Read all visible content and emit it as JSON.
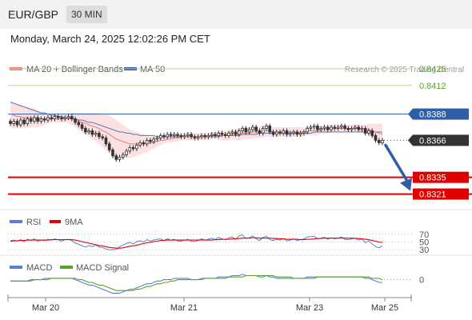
{
  "header": {
    "pair": "EUR/GBP",
    "timeframe": "30 MIN"
  },
  "timestamp": "Monday, March 24, 2025 12:02:26 PM CET",
  "legend": {
    "ma20": "MA 20 + Bollinger Bands",
    "ma50": "MA 50",
    "credit": "Research © 2025 Trading Central",
    "rsi": "RSI",
    "rsi_ma": "9MA",
    "macd": "MACD",
    "macd_signal": "MACD Signal"
  },
  "colors": {
    "ma20": "#f08080",
    "ma50": "#3a5aa8",
    "green_level": "#5aa02c",
    "blue_level": "#2e5ea8",
    "red_level": "#e00000",
    "current": "#333333",
    "arrow": "#2e5ea8",
    "rsi": "#5b7fd6",
    "rsi_ma": "#e00000",
    "macd": "#5b7fd6",
    "macd_signal": "#5aa02c"
  },
  "chart_data": [
    {
      "type": "candlestick",
      "title": "EUR/GBP 30 MIN",
      "ylim": [
        0.8312,
        0.8442
      ],
      "x_ticks": [
        "Mar 20",
        "Mar 21",
        "Mar 23",
        "Mar 25"
      ],
      "levels": [
        {
          "value": 0.8426,
          "label": "0.8426",
          "style": "green"
        },
        {
          "value": 0.8412,
          "label": "0.8412",
          "style": "green"
        },
        {
          "value": 0.8388,
          "label": "0.8388",
          "style": "blue"
        },
        {
          "value": 0.8366,
          "label": "0.8366",
          "style": "current"
        },
        {
          "value": 0.8335,
          "label": "0.8335",
          "style": "red"
        },
        {
          "value": 0.8321,
          "label": "0.8321",
          "style": "red"
        }
      ],
      "close": [
        0.838,
        0.8382,
        0.8379,
        0.8383,
        0.838,
        0.8384,
        0.8382,
        0.8385,
        0.8382,
        0.8384,
        0.8383,
        0.8385,
        0.8384,
        0.8386,
        0.8385,
        0.8384,
        0.8385,
        0.8386,
        0.8384,
        0.8381,
        0.8379,
        0.8376,
        0.8373,
        0.8374,
        0.8371,
        0.8372,
        0.8369,
        0.8368,
        0.8363,
        0.8358,
        0.8353,
        0.835,
        0.8352,
        0.8354,
        0.8357,
        0.836,
        0.8359,
        0.8362,
        0.8364,
        0.8363,
        0.8366,
        0.8365,
        0.8367,
        0.8368,
        0.837,
        0.8369,
        0.8371,
        0.837,
        0.8371,
        0.837,
        0.8369,
        0.837,
        0.8371,
        0.8369,
        0.8368,
        0.8369,
        0.837,
        0.8369,
        0.837,
        0.8371,
        0.837,
        0.8372,
        0.8371,
        0.837,
        0.8372,
        0.8373,
        0.8371,
        0.8374,
        0.8376,
        0.8373,
        0.8375,
        0.8377,
        0.8374,
        0.8372,
        0.8376,
        0.8378,
        0.8373,
        0.8371,
        0.8373,
        0.8372,
        0.8374,
        0.8371,
        0.8372,
        0.8373,
        0.8371,
        0.8372,
        0.8373,
        0.8376,
        0.8377,
        0.8378,
        0.8375,
        0.8376,
        0.8377,
        0.8375,
        0.8377,
        0.8376,
        0.8377,
        0.8378,
        0.8376,
        0.8375,
        0.8376,
        0.8377,
        0.8375,
        0.8376,
        0.8372,
        0.8374,
        0.837,
        0.8366,
        0.8364,
        0.8366
      ],
      "ma20": [
        0.8388,
        0.8387,
        0.8386,
        0.8386,
        0.8385,
        0.8385,
        0.8385,
        0.8385,
        0.8384,
        0.8384,
        0.8384,
        0.8384,
        0.8384,
        0.8384,
        0.8384,
        0.8384,
        0.8384,
        0.8384,
        0.8384,
        0.8383,
        0.8382,
        0.8381,
        0.838,
        0.8379,
        0.8378,
        0.8377,
        0.8376,
        0.8374,
        0.8373,
        0.8371,
        0.8369,
        0.8367,
        0.8366,
        0.8365,
        0.8364,
        0.8363,
        0.8363,
        0.8363,
        0.8363,
        0.8363,
        0.8363,
        0.8364,
        0.8364,
        0.8365,
        0.8366,
        0.8366,
        0.8367,
        0.8367,
        0.8368,
        0.8368,
        0.8369,
        0.8369,
        0.8369,
        0.8369,
        0.8369,
        0.8369,
        0.8369,
        0.8369,
        0.8369,
        0.837,
        0.837,
        0.837,
        0.837,
        0.837,
        0.837,
        0.8371,
        0.8371,
        0.8371,
        0.8372,
        0.8372,
        0.8372,
        0.8373,
        0.8373,
        0.8373,
        0.8373,
        0.8374,
        0.8374,
        0.8373,
        0.8373,
        0.8373,
        0.8373,
        0.8373,
        0.8373,
        0.8373,
        0.8373,
        0.8373,
        0.8373,
        0.8374,
        0.8374,
        0.8374,
        0.8374,
        0.8375,
        0.8375,
        0.8375,
        0.8376,
        0.8376,
        0.8376,
        0.8376,
        0.8376,
        0.8376,
        0.8376,
        0.8376,
        0.8376,
        0.8376,
        0.8375,
        0.8375,
        0.8374,
        0.8373,
        0.8372,
        0.8371
      ],
      "ma50": [
        0.8398,
        0.8397,
        0.8396,
        0.8395,
        0.8394,
        0.8393,
        0.8392,
        0.8391,
        0.839,
        0.8389,
        0.8389,
        0.8388,
        0.8387,
        0.8387,
        0.8386,
        0.8386,
        0.8385,
        0.8385,
        0.8384,
        0.8384,
        0.8383,
        0.8383,
        0.8382,
        0.8381,
        0.8381,
        0.838,
        0.8379,
        0.8378,
        0.8377,
        0.8376,
        0.8375,
        0.8374,
        0.8373,
        0.8373,
        0.8372,
        0.8372,
        0.8371,
        0.8371,
        0.837,
        0.837,
        0.837,
        0.837,
        0.837,
        0.8369,
        0.8369,
        0.8369,
        0.8369,
        0.8369,
        0.8369,
        0.8369,
        0.8369,
        0.8369,
        0.8369,
        0.8369,
        0.8369,
        0.8369,
        0.8369,
        0.8369,
        0.8369,
        0.8369,
        0.8369,
        0.8369,
        0.837,
        0.837,
        0.837,
        0.837,
        0.837,
        0.837,
        0.8371,
        0.8371,
        0.8371,
        0.8371,
        0.8371,
        0.8372,
        0.8372,
        0.8372,
        0.8372,
        0.8372,
        0.8372,
        0.8372,
        0.8372,
        0.8372,
        0.8372,
        0.8372,
        0.8372,
        0.8372,
        0.8372,
        0.8372,
        0.8372,
        0.8373,
        0.8373,
        0.8373,
        0.8373,
        0.8373,
        0.8373,
        0.8373,
        0.8373,
        0.8373,
        0.8373,
        0.8373,
        0.8373,
        0.8373,
        0.8373,
        0.8373,
        0.8373,
        0.8373,
        0.8373,
        0.8373,
        0.8373,
        0.8373
      ],
      "bb_width": [
        0.0011,
        0.0011,
        0.001,
        0.001,
        0.0009,
        0.0009,
        0.0008,
        0.0008,
        0.0007,
        0.0006,
        0.0005,
        0.0004,
        0.0003,
        0.0003,
        0.0003,
        0.0003,
        0.0003,
        0.0004,
        0.0005,
        0.0006,
        0.0007,
        0.0008,
        0.0009,
        0.001,
        0.0011,
        0.0012,
        0.0013,
        0.0014,
        0.0015,
        0.0016,
        0.0016,
        0.0016,
        0.0015,
        0.0014,
        0.0013,
        0.0012,
        0.0011,
        0.001,
        0.0009,
        0.0008,
        0.0007,
        0.0006,
        0.0005,
        0.0004,
        0.0004,
        0.0003,
        0.0003,
        0.0003,
        0.0003,
        0.0003,
        0.0003,
        0.0003,
        0.0003,
        0.0003,
        0.0003,
        0.0003,
        0.0003,
        0.0003,
        0.0003,
        0.0003,
        0.0003,
        0.0004,
        0.0004,
        0.0004,
        0.0004,
        0.0004,
        0.0005,
        0.0005,
        0.0005,
        0.0005,
        0.0005,
        0.0005,
        0.0005,
        0.0005,
        0.0005,
        0.0005,
        0.0005,
        0.0004,
        0.0004,
        0.0004,
        0.0004,
        0.0004,
        0.0004,
        0.0004,
        0.0004,
        0.0004,
        0.0004,
        0.0004,
        0.0004,
        0.0004,
        0.0004,
        0.0003,
        0.0003,
        0.0003,
        0.0003,
        0.0003,
        0.0003,
        0.0003,
        0.0003,
        0.0003,
        0.0003,
        0.0003,
        0.0003,
        0.0003,
        0.0004,
        0.0005,
        0.0006,
        0.0007,
        0.0008,
        0.0009
      ],
      "projection": {
        "from": 0.8366,
        "to": 0.8329
      }
    },
    {
      "type": "line",
      "title": "RSI",
      "ylim": [
        20,
        80
      ],
      "y_ticks": [
        30,
        50,
        70
      ],
      "series": [
        {
          "name": "RSI",
          "values": [
            53,
            55,
            52,
            56,
            51,
            57,
            54,
            58,
            52,
            55,
            54,
            57,
            55,
            58,
            56,
            52,
            56,
            57,
            54,
            47,
            44,
            40,
            37,
            41,
            38,
            42,
            37,
            36,
            32,
            30,
            30,
            31,
            38,
            42,
            46,
            49,
            45,
            51,
            53,
            50,
            56,
            52,
            55,
            57,
            58,
            54,
            58,
            55,
            57,
            53,
            52,
            55,
            57,
            52,
            51,
            54,
            58,
            55,
            57,
            60,
            56,
            62,
            58,
            56,
            61,
            63,
            57,
            66,
            68,
            59,
            61,
            66,
            58,
            54,
            62,
            65,
            56,
            54,
            57,
            55,
            59,
            53,
            55,
            58,
            54,
            56,
            58,
            63,
            64,
            65,
            58,
            60,
            62,
            57,
            61,
            58,
            60,
            63,
            57,
            56,
            58,
            60,
            55,
            58,
            48,
            53,
            45,
            38,
            35,
            40
          ]
        },
        {
          "name": "9MA",
          "values": [
            52,
            53,
            53,
            54,
            54,
            55,
            55,
            55,
            55,
            55,
            55,
            55,
            56,
            56,
            56,
            56,
            56,
            56,
            56,
            55,
            53,
            51,
            49,
            47,
            45,
            43,
            41,
            40,
            38,
            36,
            35,
            34,
            34,
            35,
            37,
            39,
            40,
            42,
            44,
            46,
            48,
            49,
            51,
            52,
            54,
            54,
            55,
            55,
            55,
            55,
            55,
            55,
            55,
            55,
            55,
            55,
            55,
            55,
            55,
            55,
            56,
            56,
            57,
            57,
            57,
            58,
            58,
            59,
            60,
            60,
            60,
            61,
            61,
            60,
            60,
            60,
            60,
            59,
            59,
            58,
            58,
            57,
            57,
            57,
            57,
            56,
            56,
            57,
            57,
            58,
            59,
            59,
            60,
            60,
            60,
            60,
            60,
            60,
            60,
            60,
            60,
            59,
            59,
            58,
            57,
            56,
            54,
            52,
            50,
            49
          ]
        }
      ]
    },
    {
      "type": "line",
      "title": "MACD",
      "ylim": [
        -0.0012,
        0.0008
      ],
      "y_ticks": [
        0
      ],
      "series": [
        {
          "name": "MACD",
          "values": [
            -0.0001,
            -0.0001,
            -0.0001,
            -0.0001,
            -0.0001,
            -0.0001,
            0.0,
            0.0,
            0.0,
            0.0,
            0.0001,
            0.0001,
            0.0001,
            0.0001,
            0.0001,
            0.0001,
            0.0001,
            0.0001,
            0.0001,
            0.0,
            -0.0001,
            -0.0002,
            -0.0003,
            -0.0004,
            -0.0004,
            -0.0005,
            -0.0006,
            -0.0007,
            -0.0008,
            -0.0009,
            -0.001,
            -0.001,
            -0.001,
            -0.0009,
            -0.0008,
            -0.0007,
            -0.0007,
            -0.0006,
            -0.0005,
            -0.0004,
            -0.0003,
            -0.0003,
            -0.0002,
            -0.0001,
            -0.0001,
            0.0,
            0.0,
            0.0,
            0.0001,
            0.0001,
            0.0001,
            0.0001,
            0.0001,
            0.0,
            0.0,
            0.0,
            0.0001,
            0.0001,
            0.0001,
            0.0001,
            0.0001,
            0.0002,
            0.0002,
            0.0002,
            0.0002,
            0.0003,
            0.0003,
            0.0003,
            0.0004,
            0.0003,
            0.0003,
            0.0003,
            0.0003,
            0.0002,
            0.0002,
            0.0003,
            0.0002,
            0.0002,
            0.0001,
            0.0001,
            0.0001,
            0.0001,
            0.0001,
            0.0001,
            0.0001,
            0.0001,
            0.0001,
            0.0002,
            0.0002,
            0.0002,
            0.0002,
            0.0002,
            0.0002,
            0.0002,
            0.0002,
            0.0002,
            0.0002,
            0.0002,
            0.0002,
            0.0002,
            0.0002,
            0.0002,
            0.0002,
            0.0002,
            0.0001,
            0.0001,
            0.0,
            -0.0001,
            -0.0002,
            -0.0002
          ]
        },
        {
          "name": "MACD Signal",
          "values": [
            -0.0001,
            -0.0001,
            -0.0001,
            -0.0001,
            -0.0001,
            -0.0001,
            -0.0001,
            0.0,
            0.0,
            0.0,
            0.0,
            0.0,
            0.0001,
            0.0001,
            0.0001,
            0.0001,
            0.0001,
            0.0001,
            0.0001,
            0.0001,
            0.0,
            0.0,
            -0.0001,
            -0.0002,
            -0.0002,
            -0.0003,
            -0.0004,
            -0.0004,
            -0.0005,
            -0.0006,
            -0.0007,
            -0.0008,
            -0.0008,
            -0.0008,
            -0.0008,
            -0.0008,
            -0.0008,
            -0.0007,
            -0.0007,
            -0.0006,
            -0.0005,
            -0.0005,
            -0.0004,
            -0.0003,
            -0.0003,
            -0.0002,
            -0.0002,
            -0.0001,
            -0.0001,
            0.0,
            0.0,
            0.0,
            0.0,
            0.0,
            0.0,
            0.0,
            0.0,
            0.0001,
            0.0001,
            0.0001,
            0.0001,
            0.0001,
            0.0001,
            0.0001,
            0.0002,
            0.0002,
            0.0002,
            0.0002,
            0.0002,
            0.0003,
            0.0003,
            0.0003,
            0.0003,
            0.0003,
            0.0003,
            0.0003,
            0.0003,
            0.0003,
            0.0002,
            0.0002,
            0.0002,
            0.0002,
            0.0002,
            0.0001,
            0.0001,
            0.0001,
            0.0001,
            0.0001,
            0.0001,
            0.0001,
            0.0002,
            0.0002,
            0.0002,
            0.0002,
            0.0002,
            0.0002,
            0.0002,
            0.0002,
            0.0002,
            0.0002,
            0.0002,
            0.0002,
            0.0002,
            0.0002,
            0.0002,
            0.0002,
            0.0001,
            0.0001,
            0.0001,
            0.0
          ]
        }
      ]
    }
  ]
}
